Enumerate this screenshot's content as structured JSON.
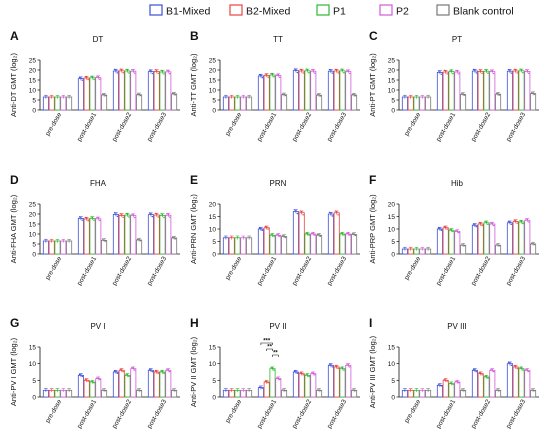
{
  "legend": {
    "entries": [
      {
        "label": "B1-Mixed",
        "color": "#3b4fd8"
      },
      {
        "label": "B2-Mixed",
        "color": "#e8433f"
      },
      {
        "label": "P1",
        "color": "#2eb82e"
      },
      {
        "label": "P2",
        "color": "#d25ad8"
      },
      {
        "label": "Blank control",
        "color": "#777777"
      }
    ]
  },
  "chart_data": [
    {
      "type": "bar",
      "panel": "A",
      "title": "DT",
      "ylabel": "Anti-DT GMT",
      "ylabel_unit": "(log₂)",
      "categories": [
        "pre-dose",
        "post-dose1",
        "post-dose2",
        "post-dose3"
      ],
      "ylim": [
        0,
        25
      ],
      "yticks": [
        0,
        5,
        10,
        15,
        20,
        25
      ],
      "series": [
        {
          "name": "B1-Mixed",
          "values": [
            6.5,
            15.7,
            19.5,
            19.2
          ]
        },
        {
          "name": "B2-Mixed",
          "values": [
            6.5,
            16.0,
            19.6,
            19.3
          ]
        },
        {
          "name": "P1",
          "values": [
            6.5,
            16.1,
            19.5,
            19.0
          ]
        },
        {
          "name": "P2",
          "values": [
            6.5,
            16.2,
            19.4,
            19.1
          ]
        },
        {
          "name": "Blank control",
          "values": [
            6.5,
            7.5,
            7.6,
            8.0
          ]
        }
      ]
    },
    {
      "type": "bar",
      "panel": "B",
      "title": "TT",
      "ylabel": "Anti-TT GMT",
      "ylabel_unit": "(log₂)",
      "categories": [
        "pre-dose",
        "post-dose1",
        "post-dose2",
        "post-dose3"
      ],
      "ylim": [
        0,
        25
      ],
      "yticks": [
        0,
        5,
        10,
        15,
        20,
        25
      ],
      "series": [
        {
          "name": "B1-Mixed",
          "values": [
            6.5,
            17.0,
            19.7,
            19.4
          ]
        },
        {
          "name": "B2-Mixed",
          "values": [
            6.5,
            17.3,
            19.5,
            19.5
          ]
        },
        {
          "name": "P1",
          "values": [
            6.5,
            17.5,
            19.6,
            19.6
          ]
        },
        {
          "name": "P2",
          "values": [
            6.5,
            17.2,
            19.4,
            19.2
          ]
        },
        {
          "name": "Blank control",
          "values": [
            6.5,
            7.6,
            7.4,
            7.5
          ]
        }
      ]
    },
    {
      "type": "bar",
      "panel": "C",
      "title": "PT",
      "ylabel": "Anti-PT GMT",
      "ylabel_unit": "(log₂)",
      "categories": [
        "pre-dose",
        "post-dose1",
        "post-dose2",
        "post-dose3"
      ],
      "ylim": [
        0,
        25
      ],
      "yticks": [
        0,
        5,
        10,
        15,
        20,
        25
      ],
      "series": [
        {
          "name": "B1-Mixed",
          "values": [
            6.5,
            18.8,
            19.5,
            19.4
          ]
        },
        {
          "name": "B2-Mixed",
          "values": [
            6.5,
            19.0,
            19.3,
            19.5
          ]
        },
        {
          "name": "P1",
          "values": [
            6.5,
            19.2,
            19.4,
            19.6
          ]
        },
        {
          "name": "P2",
          "values": [
            6.5,
            19.0,
            19.2,
            19.3
          ]
        },
        {
          "name": "Blank control",
          "values": [
            6.5,
            7.8,
            7.9,
            8.2
          ]
        }
      ]
    },
    {
      "type": "bar",
      "panel": "D",
      "title": "FHA",
      "ylabel": "Anti-FHA GMT",
      "ylabel_unit": "(log₂)",
      "categories": [
        "pre-dose",
        "post-dose1",
        "post-dose2",
        "post-dose3"
      ],
      "ylim": [
        0,
        25
      ],
      "yticks": [
        0,
        5,
        10,
        15,
        20,
        25
      ],
      "series": [
        {
          "name": "B1-Mixed",
          "values": [
            6.5,
            17.8,
            19.8,
            19.7
          ]
        },
        {
          "name": "B2-Mixed",
          "values": [
            6.5,
            17.5,
            19.3,
            19.5
          ]
        },
        {
          "name": "P1",
          "values": [
            6.5,
            17.8,
            19.5,
            19.3
          ]
        },
        {
          "name": "P2",
          "values": [
            6.5,
            17.6,
            19.2,
            19.4
          ]
        },
        {
          "name": "Blank control",
          "values": [
            6.5,
            6.8,
            7.0,
            8.0
          ]
        }
      ]
    },
    {
      "type": "bar",
      "panel": "E",
      "title": "PRN",
      "ylabel": "Anti-PRN GMT",
      "ylabel_unit": "(log₂)",
      "categories": [
        "pre-dose",
        "post-dose1",
        "post-dose2",
        "post-dose3"
      ],
      "ylim": [
        0,
        20
      ],
      "yticks": [
        0,
        5,
        10,
        15,
        20
      ],
      "series": [
        {
          "name": "B1-Mixed",
          "values": [
            6.5,
            10.0,
            17.0,
            16.0
          ]
        },
        {
          "name": "B2-Mixed",
          "values": [
            6.5,
            10.5,
            16.5,
            16.5
          ]
        },
        {
          "name": "P1",
          "values": [
            6.5,
            7.5,
            8.0,
            8.0
          ]
        },
        {
          "name": "P2",
          "values": [
            6.5,
            7.5,
            8.0,
            8.0
          ]
        },
        {
          "name": "Blank control",
          "values": [
            6.5,
            7.0,
            7.5,
            7.8
          ]
        }
      ]
    },
    {
      "type": "bar",
      "panel": "F",
      "title": "Hib",
      "ylabel": "Anti-PRP GMT",
      "ylabel_unit": "(log₂)",
      "categories": [
        "pre-dose",
        "post-dose1",
        "post-dose2",
        "post-dose3"
      ],
      "ylim": [
        0,
        20
      ],
      "yticks": [
        0,
        5,
        10,
        15,
        20
      ],
      "series": [
        {
          "name": "B1-Mixed",
          "values": [
            2.0,
            10.0,
            11.5,
            12.5
          ]
        },
        {
          "name": "B2-Mixed",
          "values": [
            2.0,
            10.5,
            12.0,
            13.0
          ]
        },
        {
          "name": "P1",
          "values": [
            2.0,
            9.5,
            12.5,
            12.8
          ]
        },
        {
          "name": "P2",
          "values": [
            2.0,
            9.0,
            12.0,
            13.5
          ]
        },
        {
          "name": "Blank control",
          "values": [
            2.0,
            3.5,
            3.5,
            4.0
          ]
        }
      ]
    },
    {
      "type": "bar",
      "panel": "G",
      "title": "PV I",
      "ylabel": "Anti-PV I GMT",
      "ylabel_unit": "(log₂)",
      "categories": [
        "pre-dose",
        "post-dose1",
        "post-dose2",
        "post-dose3"
      ],
      "ylim": [
        0,
        15
      ],
      "yticks": [
        0,
        5,
        10,
        15
      ],
      "series": [
        {
          "name": "B1-Mixed",
          "values": [
            2.0,
            6.5,
            7.5,
            8.0
          ]
        },
        {
          "name": "B2-Mixed",
          "values": [
            2.0,
            5.0,
            8.0,
            7.5
          ]
        },
        {
          "name": "P1",
          "values": [
            2.0,
            4.5,
            6.5,
            7.5
          ]
        },
        {
          "name": "P2",
          "values": [
            2.0,
            5.5,
            8.5,
            8.0
          ]
        },
        {
          "name": "Blank control",
          "values": [
            2.0,
            2.0,
            2.0,
            2.0
          ]
        }
      ]
    },
    {
      "type": "bar",
      "panel": "H",
      "title": "PV II",
      "ylabel": "Anti-PV II GMT",
      "ylabel_unit": "(log₂)",
      "categories": [
        "pre-dose",
        "post-dose1",
        "post-dose2",
        "post-dose3"
      ],
      "ylim": [
        0,
        15
      ],
      "yticks": [
        0,
        5,
        10,
        15
      ],
      "series": [
        {
          "name": "B1-Mixed",
          "values": [
            2.0,
            2.8,
            7.5,
            9.5
          ]
        },
        {
          "name": "B2-Mixed",
          "values": [
            2.0,
            4.5,
            7.0,
            9.0
          ]
        },
        {
          "name": "P1",
          "values": [
            2.0,
            8.5,
            6.5,
            8.5
          ]
        },
        {
          "name": "P2",
          "values": [
            2.0,
            5.5,
            7.0,
            9.5
          ]
        },
        {
          "name": "Blank control",
          "values": [
            2.0,
            2.0,
            2.0,
            2.0
          ]
        }
      ],
      "annotations": [
        "***",
        "**",
        "**"
      ]
    },
    {
      "type": "bar",
      "panel": "I",
      "title": "PV III",
      "ylabel": "Anti-PV III GMT",
      "ylabel_unit": "(log₂)",
      "categories": [
        "pre-dose",
        "post-dose1",
        "post-dose2",
        "post-dose3"
      ],
      "ylim": [
        0,
        15
      ],
      "yticks": [
        0,
        5,
        10,
        15
      ],
      "series": [
        {
          "name": "B1-Mixed",
          "values": [
            2.0,
            3.5,
            8.0,
            10.0
          ]
        },
        {
          "name": "B2-Mixed",
          "values": [
            2.0,
            5.0,
            7.0,
            9.0
          ]
        },
        {
          "name": "P1",
          "values": [
            2.0,
            4.0,
            6.0,
            8.5
          ]
        },
        {
          "name": "P2",
          "values": [
            2.0,
            4.5,
            8.0,
            8.0
          ]
        },
        {
          "name": "Blank control",
          "values": [
            2.0,
            2.0,
            2.0,
            2.0
          ]
        }
      ]
    }
  ]
}
